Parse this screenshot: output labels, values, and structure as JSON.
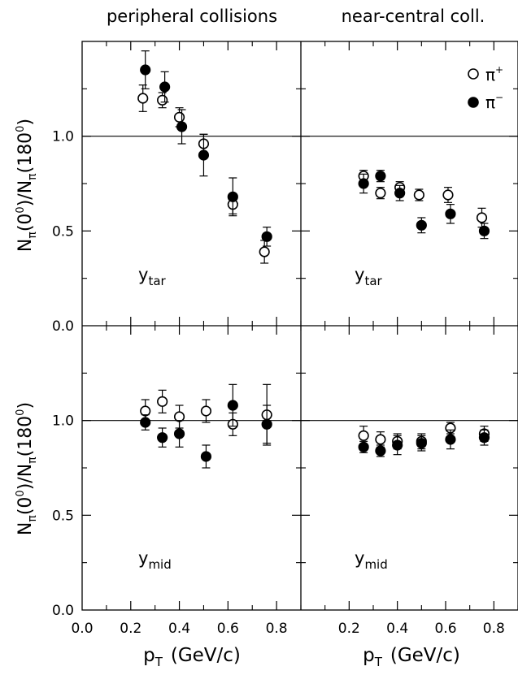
{
  "headers": {
    "left": "peripheral collisions",
    "right": "near-central coll."
  },
  "y_axis_label": {
    "main": "N",
    "sub": "π",
    "deg1": "(0",
    "deg1_sup": "0",
    "mid": ")/N",
    "deg2": "(180",
    "deg2_sup": "0",
    "end": ")"
  },
  "x_axis_label": {
    "main": "p",
    "sub": "T",
    "units": "(GeV/c)"
  },
  "legend": {
    "pi_plus_base": "π",
    "pi_plus_sup": "+",
    "pi_minus_base": "π",
    "pi_minus_sup": "−"
  },
  "panel_labels": {
    "tar_base": "y",
    "tar_sub": "tar",
    "mid_base": "y",
    "mid_sub": "mid"
  },
  "colors": {
    "axis": "#000000",
    "marker": "#000000",
    "background": "#ffffff"
  },
  "chart_data": {
    "type": "scatter",
    "layout": "2x2 panels",
    "xlabel": "pT (GeV/c)",
    "ylabel": "Nπ(0°)/Nπ(180°)",
    "xlim": [
      0,
      0.9
    ],
    "ylim": [
      0,
      1.5
    ],
    "x_ticks": [
      0.0,
      0.2,
      0.4,
      0.6,
      0.8
    ],
    "x_ticks_right": [
      0.2,
      0.4,
      0.6,
      0.8
    ],
    "y_ticks": [
      0.0,
      0.5,
      1.0
    ],
    "reference_line": 1.0,
    "legend_position": "top-right",
    "panels": [
      {
        "id": "peripheral-tar",
        "column": "left",
        "row": "top",
        "series": [
          {
            "name": "π+",
            "marker": "open-circle",
            "points": [
              {
                "x": 0.25,
                "y": 1.2,
                "err": 0.07
              },
              {
                "x": 0.33,
                "y": 1.19,
                "err": 0.04
              },
              {
                "x": 0.4,
                "y": 1.1,
                "err": 0.05
              },
              {
                "x": 0.5,
                "y": 0.96,
                "err": 0.05
              },
              {
                "x": 0.62,
                "y": 0.64,
                "err": 0.05
              },
              {
                "x": 0.75,
                "y": 0.39,
                "err": 0.06
              }
            ]
          },
          {
            "name": "π−",
            "marker": "filled-circle",
            "points": [
              {
                "x": 0.26,
                "y": 1.35,
                "err": 0.1
              },
              {
                "x": 0.34,
                "y": 1.26,
                "err": 0.08
              },
              {
                "x": 0.41,
                "y": 1.05,
                "err": 0.09
              },
              {
                "x": 0.5,
                "y": 0.9,
                "err": 0.11
              },
              {
                "x": 0.62,
                "y": 0.68,
                "err": 0.1
              },
              {
                "x": 0.76,
                "y": 0.47,
                "err": 0.05
              }
            ]
          }
        ]
      },
      {
        "id": "central-tar",
        "column": "right",
        "row": "top",
        "series": [
          {
            "name": "π+",
            "marker": "open-circle",
            "points": [
              {
                "x": 0.26,
                "y": 0.79,
                "err": 0.03
              },
              {
                "x": 0.33,
                "y": 0.7,
                "err": 0.03
              },
              {
                "x": 0.41,
                "y": 0.73,
                "err": 0.03
              },
              {
                "x": 0.49,
                "y": 0.69,
                "err": 0.03
              },
              {
                "x": 0.61,
                "y": 0.69,
                "err": 0.04
              },
              {
                "x": 0.75,
                "y": 0.57,
                "err": 0.05
              }
            ]
          },
          {
            "name": "π−",
            "marker": "filled-circle",
            "points": [
              {
                "x": 0.26,
                "y": 0.75,
                "err": 0.05
              },
              {
                "x": 0.33,
                "y": 0.79,
                "err": 0.03
              },
              {
                "x": 0.41,
                "y": 0.7,
                "err": 0.04
              },
              {
                "x": 0.5,
                "y": 0.53,
                "err": 0.04
              },
              {
                "x": 0.62,
                "y": 0.59,
                "err": 0.05
              },
              {
                "x": 0.76,
                "y": 0.5,
                "err": 0.04
              }
            ]
          }
        ]
      },
      {
        "id": "peripheral-mid",
        "column": "left",
        "row": "bottom",
        "series": [
          {
            "name": "π+",
            "marker": "open-circle",
            "points": [
              {
                "x": 0.26,
                "y": 1.05,
                "err": 0.06
              },
              {
                "x": 0.33,
                "y": 1.1,
                "err": 0.06
              },
              {
                "x": 0.4,
                "y": 1.02,
                "err": 0.06
              },
              {
                "x": 0.51,
                "y": 1.05,
                "err": 0.06
              },
              {
                "x": 0.62,
                "y": 0.98,
                "err": 0.06
              },
              {
                "x": 0.76,
                "y": 1.03,
                "err": 0.16
              }
            ]
          },
          {
            "name": "π−",
            "marker": "filled-circle",
            "points": [
              {
                "x": 0.26,
                "y": 0.99,
                "err": 0.04
              },
              {
                "x": 0.33,
                "y": 0.91,
                "err": 0.05
              },
              {
                "x": 0.4,
                "y": 0.93,
                "err": 0.07
              },
              {
                "x": 0.51,
                "y": 0.81,
                "err": 0.06
              },
              {
                "x": 0.62,
                "y": 1.08,
                "err": 0.11
              },
              {
                "x": 0.76,
                "y": 0.98,
                "err": 0.1
              }
            ]
          }
        ]
      },
      {
        "id": "central-mid",
        "column": "right",
        "row": "bottom",
        "series": [
          {
            "name": "π+",
            "marker": "open-circle",
            "points": [
              {
                "x": 0.26,
                "y": 0.92,
                "err": 0.05
              },
              {
                "x": 0.33,
                "y": 0.9,
                "err": 0.04
              },
              {
                "x": 0.4,
                "y": 0.89,
                "err": 0.04
              },
              {
                "x": 0.5,
                "y": 0.89,
                "err": 0.04
              },
              {
                "x": 0.62,
                "y": 0.96,
                "err": 0.03
              },
              {
                "x": 0.76,
                "y": 0.93,
                "err": 0.04
              }
            ]
          },
          {
            "name": "π−",
            "marker": "filled-circle",
            "points": [
              {
                "x": 0.26,
                "y": 0.86,
                "err": 0.03
              },
              {
                "x": 0.33,
                "y": 0.84,
                "err": 0.03
              },
              {
                "x": 0.4,
                "y": 0.87,
                "err": 0.05
              },
              {
                "x": 0.5,
                "y": 0.88,
                "err": 0.04
              },
              {
                "x": 0.62,
                "y": 0.9,
                "err": 0.05
              },
              {
                "x": 0.76,
                "y": 0.91,
                "err": 0.04
              }
            ]
          }
        ]
      }
    ]
  }
}
